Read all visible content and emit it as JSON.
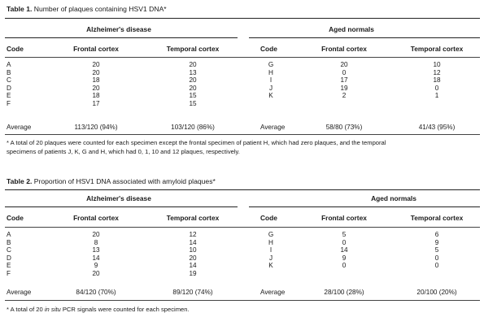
{
  "table1": {
    "label": "Table 1.",
    "title": "Number of plaques containing HSV1 DNA*",
    "group_left": "Alzheimer's disease",
    "group_right": "Aged normals",
    "headers": {
      "code": "Code",
      "frontal": "Frontal cortex",
      "temporal": "Temporal cortex"
    },
    "ad_codes": [
      "A",
      "B",
      "C",
      "D",
      "E",
      "F"
    ],
    "ad_frontal": [
      "20",
      "20",
      "18",
      "20",
      "18",
      "17"
    ],
    "ad_temporal": [
      "20",
      "13",
      "20",
      "20",
      "15",
      "15"
    ],
    "an_codes": [
      "G",
      "H",
      "I",
      "J",
      "K"
    ],
    "an_frontal": [
      "20",
      "0",
      "17",
      "19",
      "2"
    ],
    "an_temporal": [
      "10",
      "12",
      "18",
      "0",
      "1"
    ],
    "average_label": "Average",
    "ad_avg_frontal": "113/120 (94%)",
    "ad_avg_temporal": "103/120 (86%)",
    "an_avg_frontal": "58/80 (73%)",
    "an_avg_temporal": "41/43 (95%)",
    "footnote_line1": "* A total of 20 plaques were counted for each specimen except the frontal specimen of patient H, which had zero plaques, and the temporal",
    "footnote_line2": "specimens of patients J, K, G and H, which had 0, 1, 10 and 12 plaques, respectively."
  },
  "table2": {
    "label": "Table 2.",
    "title": "Proportion of HSV1 DNA associated with amyloid plaques*",
    "group_left": "Alzheimer's disease",
    "group_right": "Aged normals",
    "headers": {
      "code": "Code",
      "frontal": "Frontal cortex",
      "temporal": "Temporal cortex"
    },
    "ad_codes": [
      "A",
      "B",
      "C",
      "D",
      "E",
      "F"
    ],
    "ad_frontal": [
      "20",
      "8",
      "13",
      "14",
      "9",
      "20"
    ],
    "ad_temporal": [
      "12",
      "14",
      "10",
      "20",
      "14",
      "19"
    ],
    "an_codes": [
      "G",
      "H",
      "I",
      "J",
      "K"
    ],
    "an_frontal": [
      "5",
      "0",
      "14",
      "9",
      "0"
    ],
    "an_temporal": [
      "6",
      "9",
      "5",
      "0",
      "0"
    ],
    "average_label": "Average",
    "ad_avg_frontal": "84/120 (70%)",
    "ad_avg_temporal": "89/120 (74%)",
    "an_avg_frontal": "28/100 (28%)",
    "an_avg_temporal": "20/100 (20%)",
    "footnote_pre": "* A total of 20 ",
    "footnote_italic": "in situ",
    "footnote_post": " PCR signals were counted for each specimen."
  }
}
